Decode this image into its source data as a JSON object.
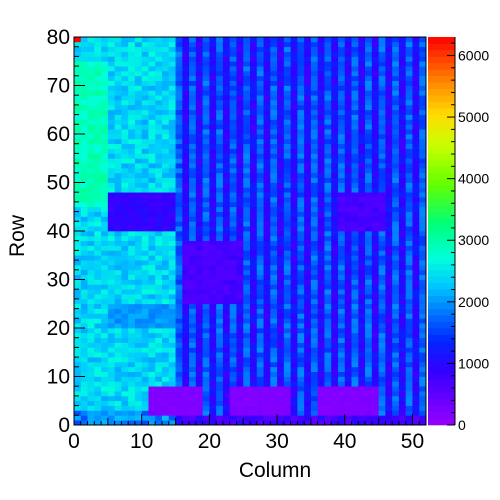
{
  "chart_data": {
    "type": "heatmap",
    "title": "",
    "xlabel": "Column",
    "ylabel": "Row",
    "xlim": [
      0,
      52
    ],
    "ylim": [
      0,
      80
    ],
    "zlim": [
      0,
      6300
    ],
    "x_ticks": [
      0,
      10,
      20,
      30,
      40,
      50
    ],
    "y_ticks": [
      0,
      10,
      20,
      30,
      40,
      50,
      60,
      70,
      80
    ],
    "z_ticks": [
      0,
      1000,
      2000,
      3000,
      4000,
      5000,
      6000
    ],
    "n_columns": 52,
    "n_rows": 80,
    "colormap": "rainbow (violet to red)",
    "grid": false,
    "legend": "color scale on right",
    "cell_regions": [
      {
        "label": "left columns 0-15, rows 0-80",
        "x": [
          0,
          15
        ],
        "y": [
          0,
          80
        ],
        "value": 2400
      },
      {
        "label": "left columns 0-5, rows 45-75",
        "x": [
          0,
          5
        ],
        "y": [
          45,
          75
        ],
        "value": 2900
      },
      {
        "label": "left block columns 5-15, rows 40-48",
        "x": [
          5,
          15
        ],
        "y": [
          40,
          48
        ],
        "value": 900
      },
      {
        "label": "right columns 15-52, even bands",
        "x": [
          15,
          52
        ],
        "y": [
          0,
          80
        ],
        "value": 1000
      },
      {
        "label": "right columns 15-52, odd bands",
        "x": [
          15,
          52
        ],
        "y": [
          0,
          80
        ],
        "value": 1700
      },
      {
        "label": "middle block columns 16-25, rows 25-38",
        "x": [
          16,
          25
        ],
        "y": [
          25,
          38
        ],
        "value": 700
      },
      {
        "label": "right block columns 39-46, rows 40-48",
        "x": [
          39,
          46
        ],
        "y": [
          40,
          48
        ],
        "value": 700
      },
      {
        "label": "dead block columns 11-19, rows 2-8",
        "x": [
          11,
          19
        ],
        "y": [
          2,
          8
        ],
        "value": 150
      },
      {
        "label": "dead block columns 23-32, rows 2-8",
        "x": [
          23,
          32
        ],
        "y": [
          2,
          8
        ],
        "value": 150
      },
      {
        "label": "dead block columns 36-45, rows 2-8",
        "x": [
          36,
          45
        ],
        "y": [
          2,
          8
        ],
        "value": 150
      },
      {
        "label": "hot cell column 0, row 79",
        "x": [
          0,
          1
        ],
        "y": [
          79,
          80
        ],
        "value": 6300
      }
    ]
  }
}
